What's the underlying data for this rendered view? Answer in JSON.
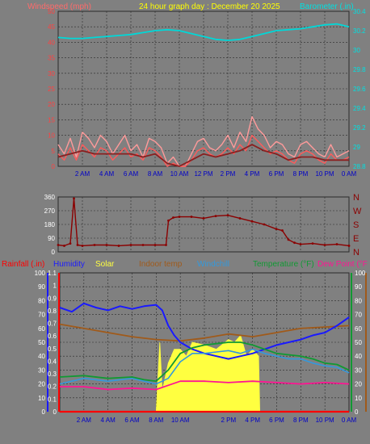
{
  "colors": {
    "background": "#808080",
    "grid": "#2a2a2a",
    "wind": "#ff5a5a",
    "wind_gust": "#ff9a9a",
    "wind_avg": "#8a2020",
    "baro": "#00d8d8",
    "dir": "#8b0000",
    "rain": "#ff0000",
    "humidity": "#1a1aff",
    "solar": "#ffff40",
    "indoor": "#a05a1a",
    "windchill": "#3399dd",
    "temperature": "#119933",
    "dewpoint": "#ff1493",
    "tick_text_blue": "#0000c8",
    "tick_text_white": "#ffffff"
  },
  "header": {
    "left": "Windspeed (mph)",
    "center": "24 hour graph day : December 20 2025",
    "right": "Barometer (.in)"
  },
  "x_labels": [
    "2 AM",
    "4 AM",
    "6 AM",
    "8 AM",
    "10 AM",
    "12 PM",
    "2 PM",
    "4 PM",
    "6 PM",
    "8 PM",
    "10 PM",
    "0 AM"
  ],
  "x_labels_bottom": [
    "2 AM",
    "4 AM",
    "6 AM",
    "8 AM",
    "10 AM",
    "2 PM",
    "4 PM",
    "6 PM",
    "8 PM",
    "10 PM",
    "0 AM"
  ],
  "legend": {
    "rain": "Rainfall (.in)",
    "humidity": "Humidity",
    "solar": "Solar",
    "indoor": "Indoor temp",
    "windchill": "Windchill",
    "temperature": "Temperature (°F)",
    "dewpoint": "Dew Point (°F"
  },
  "chart_data": [
    {
      "type": "line",
      "name": "wind_baro",
      "ylim_left": [
        0,
        50
      ],
      "yticks_left": [
        "0",
        "5",
        "10",
        "15",
        "20",
        "25",
        "30",
        "35",
        "40",
        "45",
        "50"
      ],
      "ylim_right": [
        28.8,
        30.4
      ],
      "yticks_right": [
        "28.8",
        "29",
        "29.2",
        "29.4",
        "29.6",
        "29.8",
        "30",
        "30.2",
        "30.4"
      ],
      "x_range_hours": [
        0,
        24
      ],
      "series": [
        {
          "key": "gust",
          "axis": "left",
          "x": [
            0,
            0.5,
            1,
            1.5,
            2,
            2.5,
            3,
            3.5,
            4,
            4.5,
            5,
            5.5,
            6,
            6.5,
            7,
            7.5,
            8,
            8.5,
            9,
            9.5,
            10,
            10.5,
            11,
            11.5,
            12,
            12.5,
            13,
            13.5,
            14,
            14.5,
            15,
            15.5,
            16,
            16.5,
            17,
            17.5,
            18,
            18.5,
            19,
            19.5,
            20,
            20.5,
            21,
            21.5,
            22,
            22.5,
            23,
            23.5,
            24
          ],
          "y": [
            7,
            4,
            9,
            3,
            11,
            9,
            6,
            10,
            8,
            4,
            7,
            10,
            5,
            7,
            3,
            9,
            8,
            6,
            1,
            3,
            0,
            0,
            4,
            8,
            9,
            6,
            5,
            7,
            10,
            6,
            11,
            8,
            16,
            12,
            10,
            6,
            8,
            7,
            4,
            3,
            7,
            8,
            6,
            4,
            3,
            7,
            3,
            4,
            5
          ]
        },
        {
          "key": "speed",
          "axis": "left",
          "x": [
            0,
            0.5,
            1,
            1.5,
            2,
            2.5,
            3,
            3.5,
            4,
            4.5,
            5,
            5.5,
            6,
            6.5,
            7,
            7.5,
            8,
            8.5,
            9,
            9.5,
            10,
            10.5,
            11,
            11.5,
            12,
            12.5,
            13,
            13.5,
            14,
            14.5,
            15,
            15.5,
            16,
            16.5,
            17,
            17.5,
            18,
            18.5,
            19,
            19.5,
            20,
            20.5,
            21,
            21.5,
            22,
            22.5,
            23,
            23.5,
            24
          ],
          "y": [
            4,
            2,
            6,
            2,
            7,
            5,
            3,
            6,
            5,
            2,
            4,
            6,
            3,
            4,
            2,
            6,
            5,
            3,
            0,
            1,
            0,
            0,
            2,
            5,
            6,
            4,
            3,
            4,
            6,
            4,
            7,
            5,
            10,
            8,
            6,
            4,
            5,
            4,
            2,
            1,
            4,
            5,
            4,
            2,
            1,
            4,
            2,
            2,
            3
          ]
        },
        {
          "key": "avg",
          "axis": "left",
          "x": [
            0,
            1,
            2,
            3,
            4,
            5,
            6,
            7,
            8,
            9,
            10,
            11,
            12,
            13,
            14,
            15,
            16,
            17,
            18,
            19,
            20,
            21,
            22,
            23,
            24
          ],
          "y": [
            3,
            4,
            5,
            4,
            4,
            4,
            4,
            3,
            4,
            1,
            0,
            2,
            4,
            3,
            4,
            5,
            7,
            5,
            4,
            2,
            3,
            3,
            2,
            2,
            2
          ]
        },
        {
          "key": "baro",
          "axis": "right",
          "x": [
            0,
            1,
            2,
            3,
            4,
            5,
            6,
            7,
            8,
            9,
            10,
            11,
            12,
            13,
            14,
            15,
            16,
            17,
            18,
            19,
            20,
            21,
            22,
            23,
            24
          ],
          "y": [
            30.13,
            30.12,
            30.12,
            30.13,
            30.14,
            30.15,
            30.16,
            30.18,
            30.2,
            30.21,
            30.2,
            30.17,
            30.14,
            30.11,
            30.1,
            30.11,
            30.14,
            30.17,
            30.2,
            30.21,
            30.22,
            30.24,
            30.26,
            30.27,
            30.24
          ]
        }
      ]
    },
    {
      "type": "scatter",
      "name": "wind_direction",
      "ylim": [
        0,
        360
      ],
      "yticks_left": [
        "0",
        "90",
        "180",
        "270",
        "360"
      ],
      "compass_labels": [
        "N",
        "W",
        "S",
        "E",
        "N"
      ],
      "x": [
        0,
        0.5,
        1,
        1.3,
        1.6,
        2,
        3,
        4,
        5,
        6,
        7,
        8,
        8.9,
        9.1,
        9.5,
        10,
        11,
        12,
        13,
        14,
        15,
        16,
        17,
        18,
        18.5,
        19,
        19.5,
        20,
        21,
        22,
        23,
        24
      ],
      "y": [
        45,
        40,
        55,
        350,
        45,
        40,
        45,
        45,
        40,
        45,
        45,
        45,
        45,
        205,
        225,
        230,
        230,
        220,
        235,
        240,
        220,
        200,
        180,
        150,
        140,
        80,
        60,
        50,
        55,
        45,
        50,
        40
      ]
    },
    {
      "type": "line",
      "name": "temp_humidity",
      "ylim_left": [
        0,
        100
      ],
      "ylim_right": [
        0,
        100
      ],
      "ylim_rain": [
        0,
        1.1
      ],
      "yticks_left": [
        "0",
        "10",
        "20",
        "30",
        "40",
        "50",
        "60",
        "70",
        "80",
        "90",
        "100"
      ],
      "yticks_rain": [
        "0",
        "0.1",
        "0.2",
        "0.3",
        "0.4",
        "0.5",
        "0.6",
        "0.7",
        "0.8",
        "0.9",
        "1",
        "1.1"
      ],
      "yticks_right": [
        "0",
        "10",
        "20",
        "30",
        "40",
        "50",
        "60",
        "70",
        "80",
        "90",
        "100"
      ],
      "x_range_hours": [
        0,
        24
      ],
      "series": [
        {
          "key": "humidity",
          "x": [
            0,
            1,
            2,
            3,
            4,
            5,
            6,
            7,
            8,
            8.5,
            9,
            9.5,
            10,
            11,
            12,
            13,
            14,
            15,
            16,
            17,
            18,
            19,
            20,
            21,
            22,
            23,
            24
          ],
          "y": [
            75,
            72,
            78,
            75,
            73,
            76,
            74,
            76,
            77,
            73,
            62,
            55,
            50,
            45,
            42,
            40,
            38,
            40,
            42,
            45,
            48,
            50,
            52,
            55,
            57,
            62,
            68
          ]
        },
        {
          "key": "indoor",
          "x": [
            0,
            2,
            4,
            6,
            8,
            10,
            12,
            14,
            16,
            18,
            20,
            22,
            24
          ],
          "y": [
            63,
            60,
            57,
            54,
            52,
            51,
            53,
            56,
            54,
            57,
            60,
            61,
            62
          ]
        },
        {
          "key": "windchill",
          "x": [
            0,
            2,
            4,
            6,
            7,
            8,
            9,
            10,
            11,
            12,
            13,
            14,
            15,
            16,
            17,
            18,
            19,
            20,
            21,
            22,
            23,
            24
          ],
          "y": [
            20,
            24,
            22,
            24,
            22,
            20,
            24,
            36,
            42,
            42,
            43,
            44,
            42,
            45,
            42,
            40,
            38,
            38,
            35,
            33,
            32,
            28
          ]
        },
        {
          "key": "temperature",
          "x": [
            0,
            2,
            4,
            6,
            7,
            8,
            9,
            10,
            11,
            12,
            13,
            14,
            15,
            16,
            17,
            18,
            19,
            20,
            21,
            22,
            23,
            24
          ],
          "y": [
            25,
            26,
            24,
            25,
            23,
            22,
            30,
            42,
            46,
            48,
            49,
            50,
            50,
            48,
            45,
            42,
            41,
            40,
            38,
            35,
            34,
            30
          ]
        },
        {
          "key": "dewpoint",
          "x": [
            0,
            2,
            4,
            6,
            8,
            9,
            10,
            12,
            14,
            16,
            18,
            20,
            22,
            24
          ],
          "y": [
            18,
            18,
            16,
            17,
            16,
            19,
            22,
            22,
            21,
            22,
            21,
            20,
            21,
            20
          ]
        },
        {
          "key": "solar",
          "x": [
            8,
            8.3,
            8.5,
            9,
            9.5,
            10,
            10.5,
            11,
            12,
            13,
            14,
            14.5,
            15,
            15.5,
            16,
            16.5,
            16.6
          ],
          "y": [
            0,
            50,
            15,
            35,
            45,
            45,
            40,
            50,
            48,
            45,
            52,
            50,
            55,
            40,
            45,
            40,
            0
          ]
        },
        {
          "key": "rain",
          "x": [
            0,
            24
          ],
          "y": [
            0,
            0
          ]
        }
      ]
    }
  ]
}
